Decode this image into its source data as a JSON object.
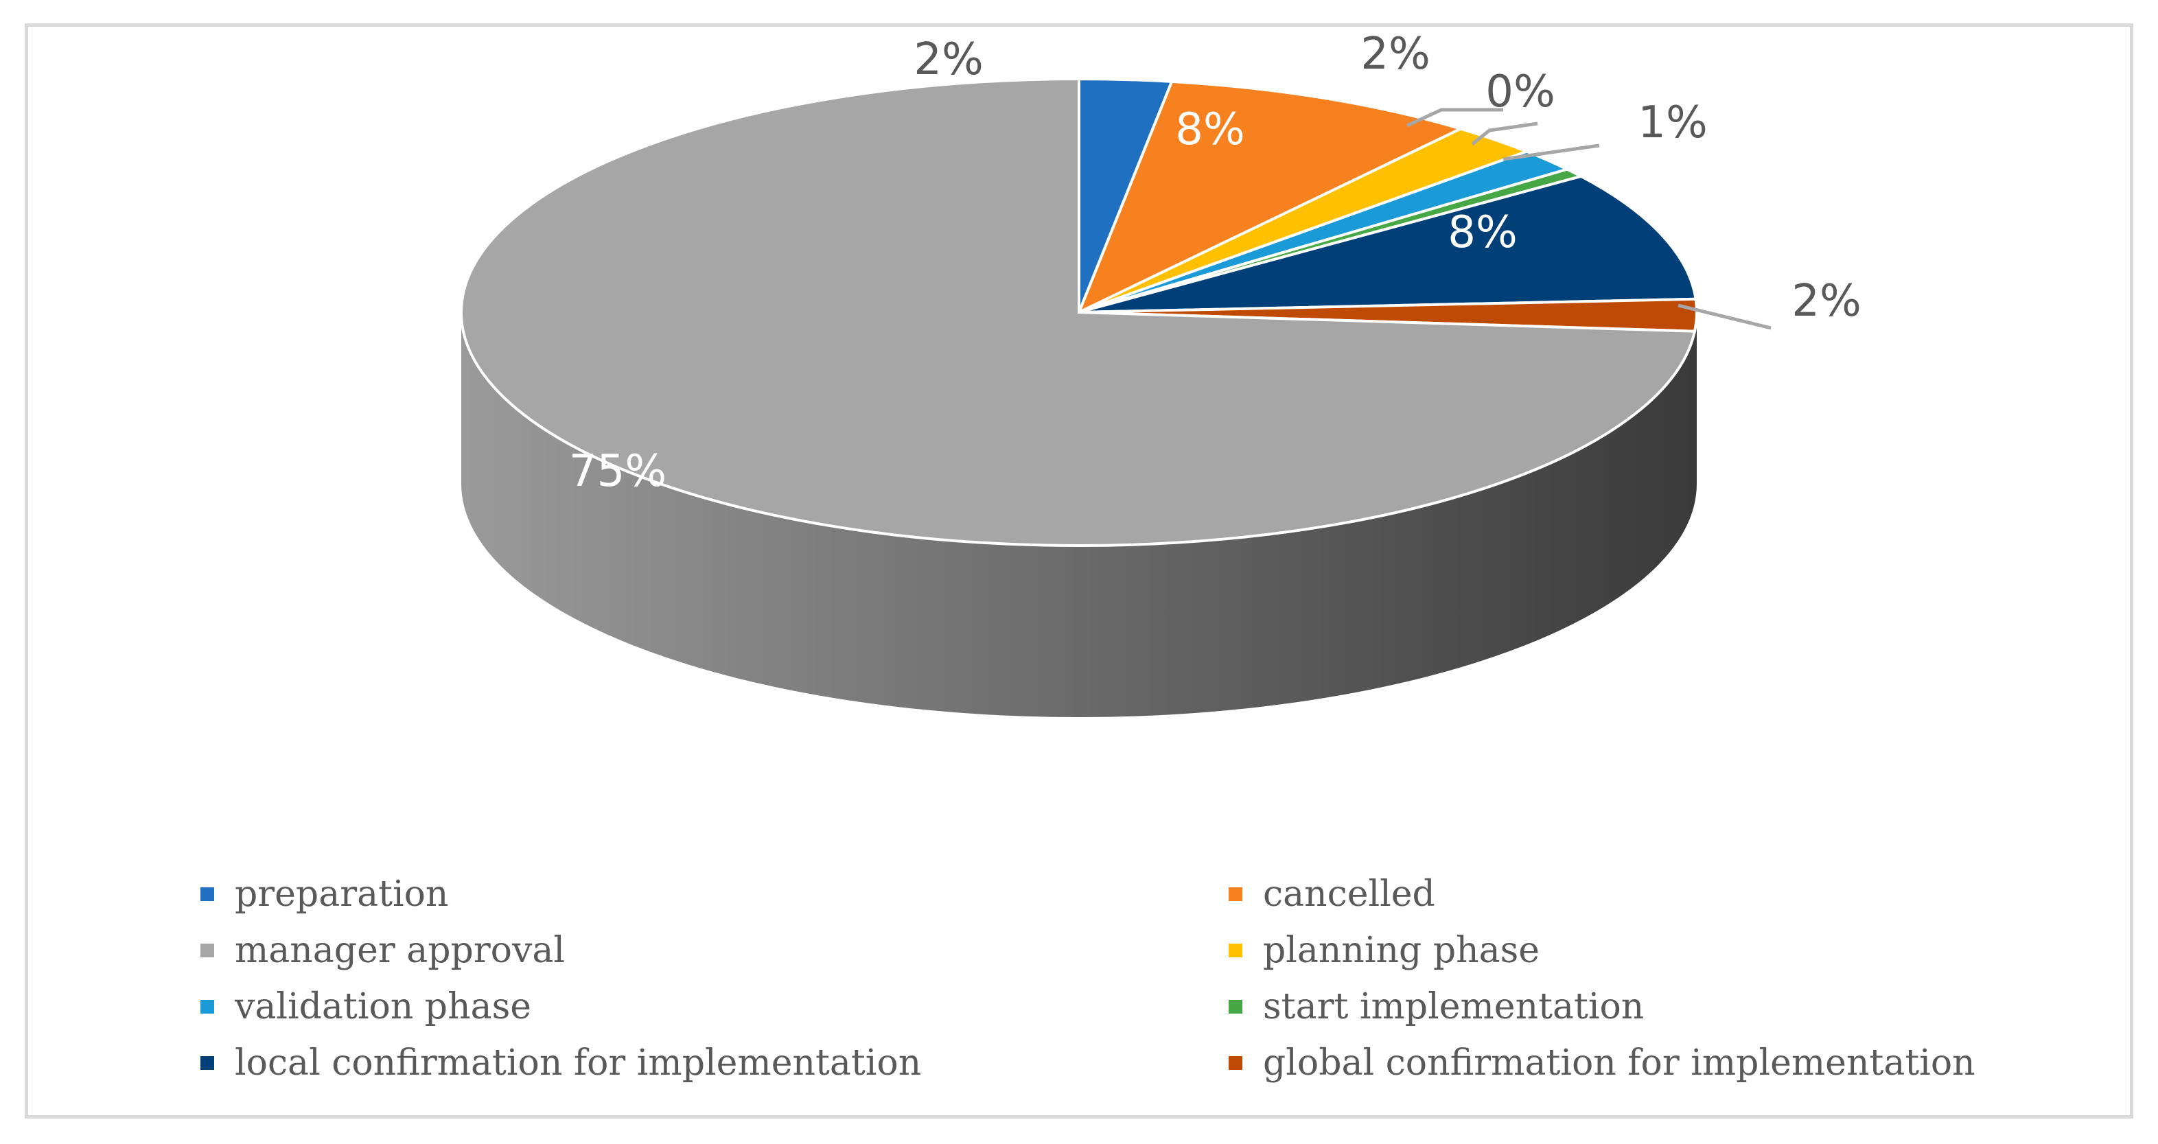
{
  "chart_data": {
    "type": "pie",
    "style": "3d",
    "title": "",
    "slices": [
      {
        "name": "preparation",
        "value": 2,
        "label": "2%",
        "color": "#1f70c1"
      },
      {
        "name": "cancelled",
        "value": 8,
        "label": "8%",
        "color": "#f7811f"
      },
      {
        "name": "planning phase",
        "value": 2,
        "label": "2%",
        "color": "#ffc000"
      },
      {
        "name": "validation phase",
        "value": 0,
        "label": "0%",
        "color": "#1a9ad6"
      },
      {
        "name": "start  implementation",
        "value": 1,
        "label": "1%",
        "color": "#46a844"
      },
      {
        "name": "local confirmation for implementation",
        "value": 8,
        "label": "8%",
        "color": "#003f78"
      },
      {
        "name": "global confirmation for implementation",
        "value": 2,
        "label": "2%",
        "color": "#bf4a04"
      },
      {
        "name": "manager approval",
        "value": 75,
        "label": "75%",
        "color": "#a6a6a6"
      }
    ],
    "legend": [
      {
        "label": "preparation",
        "color": "#1f70c1"
      },
      {
        "label": "cancelled",
        "color": "#f7811f"
      },
      {
        "label": "manager approval",
        "color": "#a6a6a6"
      },
      {
        "label": "planning phase",
        "color": "#ffc000"
      },
      {
        "label": "validation phase",
        "color": "#1a9ad6"
      },
      {
        "label": "start  implementation",
        "color": "#46a844"
      },
      {
        "label": "local confirmation for implementation",
        "color": "#003f78"
      },
      {
        "label": "global confirmation for implementation",
        "color": "#bf4a04"
      }
    ],
    "legend_position": "bottom"
  }
}
